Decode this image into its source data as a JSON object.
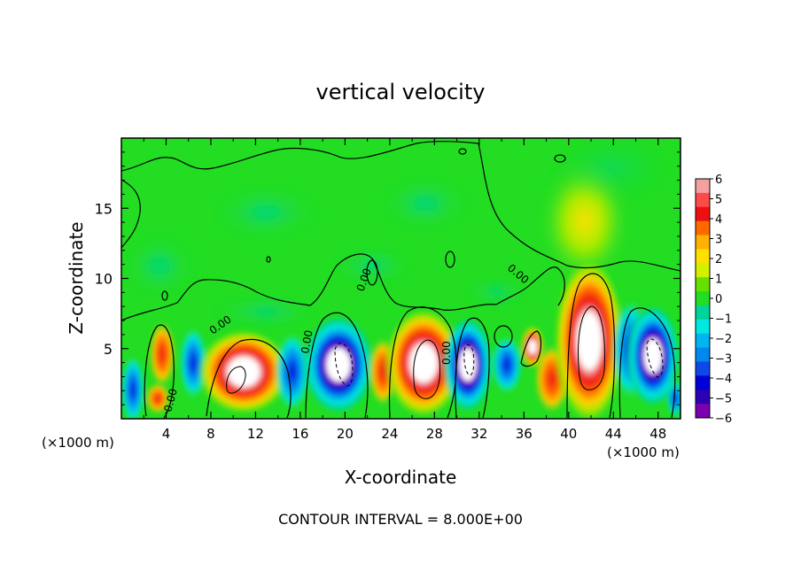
{
  "chart_data": {
    "type": "heatmap",
    "title": "vertical velocity",
    "xlabel": "X-coordinate",
    "ylabel": "Z-coordinate",
    "x_units_left": "(×1000 m)",
    "x_units_right": "(×1000 m)",
    "xlim": [
      0,
      50
    ],
    "ylim": [
      0,
      20
    ],
    "x_ticks": [
      4,
      8,
      12,
      16,
      20,
      24,
      28,
      32,
      36,
      40,
      44,
      48
    ],
    "x_tick_labels": [
      "4",
      "8",
      "12",
      "16",
      "20",
      "24",
      "28",
      "32",
      "36",
      "40",
      "44",
      "48"
    ],
    "y_ticks": [
      5,
      10,
      15
    ],
    "y_tick_labels": [
      "5",
      "10",
      "15"
    ],
    "contour_labels": [
      "0.00",
      "0.00",
      "0.00",
      "0.00",
      "0.00",
      "0.00",
      "0.00"
    ],
    "colorbar": {
      "range": [
        -6,
        6
      ],
      "tick_labels": [
        "6",
        "5",
        "4",
        "3",
        "2",
        "1",
        "0",
        "−1",
        "−2",
        "−3",
        "−4",
        "−5",
        "−6"
      ],
      "colors_top_to_bottom": [
        "#f4a0a0",
        "#ff4a4a",
        "#ee1010",
        "#ff6a00",
        "#ffb000",
        "#ffe000",
        "#d2f000",
        "#66e000",
        "#22dd22",
        "#00d49a",
        "#00e8e0",
        "#00b4f0",
        "#0088f0",
        "#1048e8",
        "#0000d8",
        "#2e00b4",
        "#7a00b0"
      ]
    },
    "features": [
      {
        "x": 4,
        "z": 3.5,
        "sign": "up"
      },
      {
        "x": 6.5,
        "z": 3.5,
        "sign": "down"
      },
      {
        "x": 10.5,
        "z": 3,
        "sign": "up"
      },
      {
        "x": 12.5,
        "z": 2.5,
        "sign": "up"
      },
      {
        "x": 16,
        "z": 3.5,
        "sign": "down"
      },
      {
        "x": 20,
        "z": 4.5,
        "sign": "down"
      },
      {
        "x": 27,
        "z": 4.5,
        "sign": "up"
      },
      {
        "x": 31,
        "z": 4,
        "sign": "down"
      },
      {
        "x": 34.5,
        "z": 3.5,
        "sign": "down"
      },
      {
        "x": 36.5,
        "z": 4.5,
        "sign": "up"
      },
      {
        "x": 38.5,
        "z": 3,
        "sign": "up"
      },
      {
        "x": 42,
        "z": 6,
        "sign": "up"
      },
      {
        "x": 45,
        "z": 5,
        "sign": "down"
      },
      {
        "x": 47.5,
        "z": 4.5,
        "sign": "down"
      }
    ],
    "annotation": "CONTOUR INTERVAL = 8.000E+00"
  }
}
